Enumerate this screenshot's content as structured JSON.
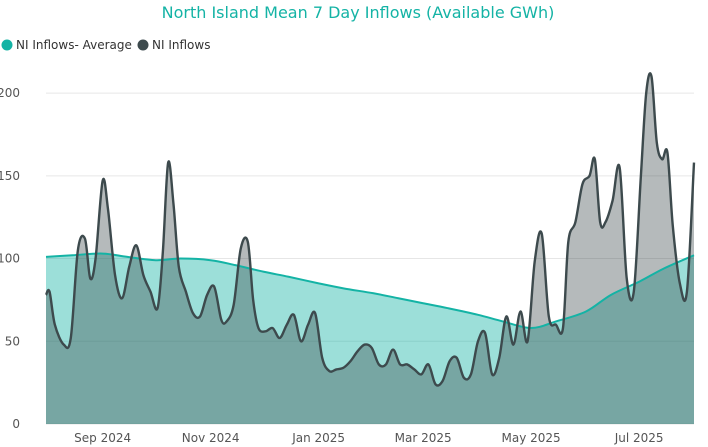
{
  "chart_data": {
    "type": "area",
    "title": "North Island Mean 7 Day Inflows (Available GWh)",
    "xlabel": "",
    "ylabel": "",
    "ylim": [
      0,
      220
    ],
    "yticks": [
      0,
      50,
      100,
      150,
      200
    ],
    "xticks": [
      "Sep 2024",
      "Nov 2024",
      "Jan 2025",
      "Mar 2025",
      "May 2025",
      "Jul 2025"
    ],
    "grid": true,
    "legend_position": "top-left",
    "series": [
      {
        "name": "NI Inflows- Average",
        "color": "#14b3a5",
        "x": [
          "2024-07-31",
          "2024-08-15",
          "2024-09-01",
          "2024-09-15",
          "2024-10-01",
          "2024-10-15",
          "2024-11-01",
          "2024-11-15",
          "2024-12-01",
          "2024-12-15",
          "2025-01-01",
          "2025-01-15",
          "2025-02-01",
          "2025-02-15",
          "2025-03-01",
          "2025-03-15",
          "2025-04-01",
          "2025-04-15",
          "2025-05-01",
          "2025-05-15",
          "2025-06-01",
          "2025-06-15",
          "2025-07-01",
          "2025-07-15",
          "2025-08-01"
        ],
        "values": [
          101,
          102,
          103,
          101,
          99,
          100,
          99,
          96,
          92,
          89,
          85,
          82,
          79,
          76,
          73,
          70,
          66,
          62,
          58,
          62,
          68,
          78,
          86,
          94,
          102
        ]
      },
      {
        "name": "NI Inflows",
        "color": "#3d4a4d",
        "x": [
          "2024-07-31",
          "2024-08-02",
          "2024-08-05",
          "2024-08-10",
          "2024-08-14",
          "2024-08-18",
          "2024-08-22",
          "2024-08-25",
          "2024-08-28",
          "2024-09-01",
          "2024-09-04",
          "2024-09-08",
          "2024-09-12",
          "2024-09-16",
          "2024-09-20",
          "2024-09-24",
          "2024-09-28",
          "2024-10-02",
          "2024-10-05",
          "2024-10-08",
          "2024-10-11",
          "2024-10-14",
          "2024-10-18",
          "2024-10-22",
          "2024-10-26",
          "2024-10-30",
          "2024-11-03",
          "2024-11-07",
          "2024-11-10",
          "2024-11-14",
          "2024-11-18",
          "2024-11-22",
          "2024-11-25",
          "2024-11-28",
          "2024-12-02",
          "2024-12-06",
          "2024-12-10",
          "2024-12-14",
          "2024-12-18",
          "2024-12-22",
          "2024-12-26",
          "2024-12-30",
          "2025-01-03",
          "2025-01-07",
          "2025-01-11",
          "2025-01-15",
          "2025-01-19",
          "2025-01-23",
          "2025-01-27",
          "2025-01-31",
          "2025-02-04",
          "2025-02-08",
          "2025-02-12",
          "2025-02-16",
          "2025-02-20",
          "2025-02-24",
          "2025-02-28",
          "2025-03-04",
          "2025-03-08",
          "2025-03-12",
          "2025-03-16",
          "2025-03-20",
          "2025-03-24",
          "2025-03-28",
          "2025-04-01",
          "2025-04-05",
          "2025-04-09",
          "2025-04-13",
          "2025-04-17",
          "2025-04-21",
          "2025-04-25",
          "2025-04-29",
          "2025-05-03",
          "2025-05-07",
          "2025-05-11",
          "2025-05-15",
          "2025-05-19",
          "2025-05-22",
          "2025-05-26",
          "2025-05-30",
          "2025-06-03",
          "2025-06-06",
          "2025-06-09",
          "2025-06-12",
          "2025-06-16",
          "2025-06-20",
          "2025-06-24",
          "2025-06-28",
          "2025-07-02",
          "2025-07-05",
          "2025-07-08",
          "2025-07-11",
          "2025-07-14",
          "2025-07-17",
          "2025-07-20",
          "2025-07-24",
          "2025-07-28",
          "2025-08-01"
        ],
        "values": [
          78,
          80,
          60,
          48,
          52,
          105,
          112,
          88,
          100,
          147,
          130,
          90,
          76,
          95,
          108,
          90,
          80,
          70,
          104,
          158,
          133,
          95,
          80,
          67,
          65,
          78,
          83,
          63,
          62,
          72,
          106,
          110,
          75,
          58,
          56,
          58,
          52,
          60,
          66,
          50,
          60,
          67,
          40,
          32,
          33,
          34,
          38,
          44,
          48,
          46,
          36,
          36,
          45,
          36,
          36,
          33,
          30,
          36,
          24,
          26,
          38,
          40,
          28,
          30,
          50,
          55,
          30,
          40,
          65,
          48,
          68,
          50,
          98,
          115,
          65,
          60,
          58,
          110,
          122,
          145,
          150,
          160,
          122,
          122,
          135,
          155,
          88,
          80,
          150,
          200,
          210,
          170,
          160,
          164,
          120,
          85,
          80,
          158
        ]
      }
    ]
  }
}
